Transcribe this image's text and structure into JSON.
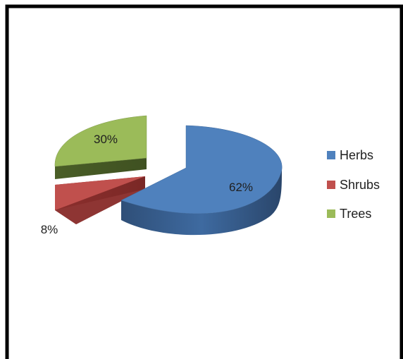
{
  "chart_data": {
    "type": "pie",
    "title": "",
    "three_d": true,
    "exploded": true,
    "legend_position": "right",
    "categories": [
      "Herbs",
      "Shrubs",
      "Trees"
    ],
    "values": [
      62,
      8,
      30
    ],
    "labels": [
      "62%",
      "8%",
      "30%"
    ],
    "colors": {
      "Herbs": "#4f81bd",
      "Shrubs": "#c0504d",
      "Trees": "#9bbb59"
    }
  }
}
